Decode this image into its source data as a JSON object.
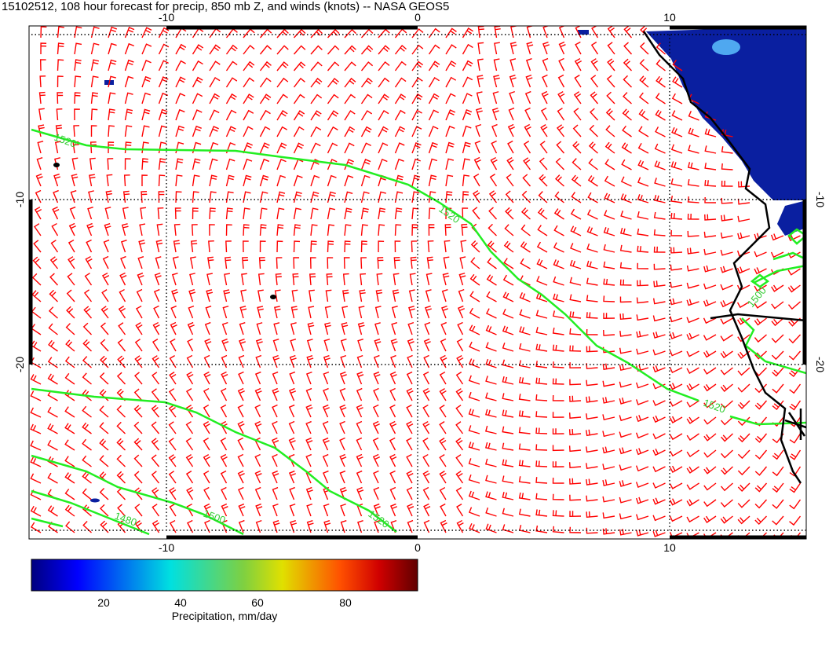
{
  "title": "15102512, 108 hour forecast for precip, 850 mb Z, and winds (knots) -- NASA GEOS5",
  "map": {
    "x_ticks_top": [
      "-10",
      "0",
      "10"
    ],
    "x_ticks_bottom": [
      "-10",
      "0",
      "10"
    ],
    "y_ticks_left": [
      "-10",
      "-20"
    ],
    "y_ticks_right": [
      "-10",
      "-20"
    ],
    "contour_labels": [
      "1520",
      "1520",
      "1500",
      "1520",
      "1480",
      "1500",
      "1520"
    ]
  },
  "colorbar": {
    "ticks": [
      "20",
      "40",
      "60",
      "80"
    ],
    "label": "Precipitation, mm/day"
  }
}
